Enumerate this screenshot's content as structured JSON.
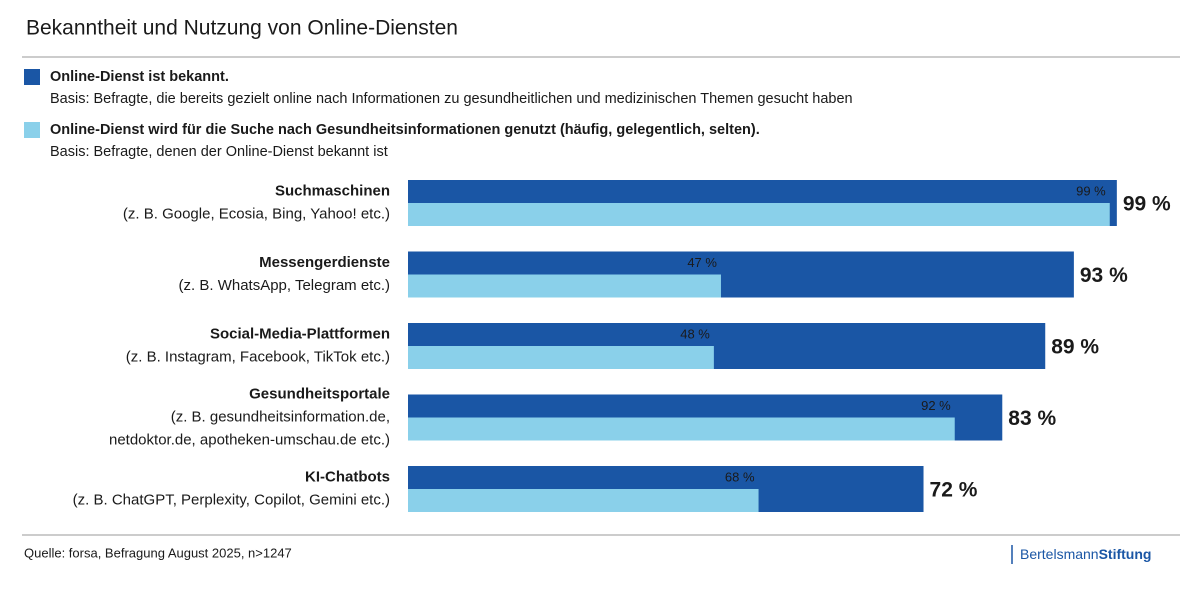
{
  "chart_data": {
    "type": "bar",
    "title": "Bekanntheit und Nutzung von Online-Diensten",
    "categories": [
      "Suchmaschinen",
      "Messengerdienste",
      "Social-Media-Plattformen",
      "Gesundheitsportale",
      "KI-Chatbots"
    ],
    "category_notes": [
      [
        "(z. B. Google, Ecosia, Bing, Yahoo! etc.)"
      ],
      [
        "(z. B. WhatsApp, Telegram etc.)"
      ],
      [
        "(z. B. Instagram, Facebook, TikTok etc.)"
      ],
      [
        "(z. B. gesundheitsinformation.de,",
        "netdoktor.de, apotheken-umschau.de etc.)"
      ],
      [
        "(z. B. ChatGPT, Perplexity, Copilot, Gemini etc.)"
      ]
    ],
    "series": [
      {
        "name": "Online-Dienst ist bekannt.",
        "basis": "Basis: Befragte, die bereits gezielt online nach Informationen zu gesundheitlichen und medizinischen Themen gesucht haben",
        "color": "#1a56a5",
        "values": [
          99,
          93,
          89,
          83,
          72
        ],
        "value_labels": [
          "99 %",
          "93 %",
          "89 %",
          "83 %",
          "72 %"
        ]
      },
      {
        "name": "Online-Dienst wird für die Suche nach Gesundheitsinformationen genutzt (häufig, gelegentlich, selten).",
        "basis": "Basis: Befragte, denen der Online-Dienst bekannt ist",
        "color": "#8ad0ea",
        "values": [
          99,
          47,
          48,
          92,
          68
        ],
        "value_labels": [
          "99 %",
          "47 %",
          "48 %",
          "92 %",
          "68 %"
        ]
      }
    ],
    "xlim": [
      0,
      100
    ],
    "source": "Quelle: forsa, Befragung August 2025, n>1247",
    "brand": [
      "Bertelsmann",
      "Stiftung"
    ]
  }
}
